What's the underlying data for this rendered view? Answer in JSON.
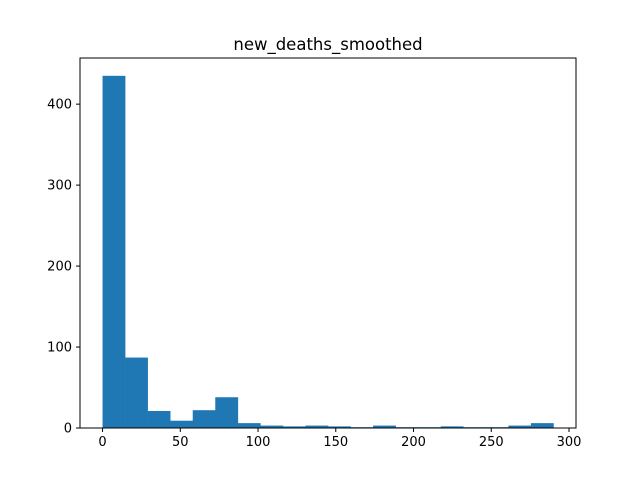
{
  "chart_data": {
    "type": "histogram",
    "title": "new_deaths_smoothed",
    "xlabel": "",
    "ylabel": "",
    "xlim": [
      -14.5,
      304.5
    ],
    "ylim": [
      0,
      457
    ],
    "bin_start": 0,
    "bin_width": 14.5,
    "counts": [
      435,
      87,
      21,
      9,
      22,
      38,
      6,
      3,
      2,
      3,
      2,
      1,
      3,
      1,
      1,
      2,
      1,
      1,
      3,
      6
    ],
    "x_ticks": [
      0,
      50,
      100,
      150,
      200,
      250,
      300
    ],
    "y_ticks": [
      0,
      100,
      200,
      300,
      400
    ],
    "colors": {
      "bar": "#1f77b4",
      "frame": "#000000"
    }
  }
}
